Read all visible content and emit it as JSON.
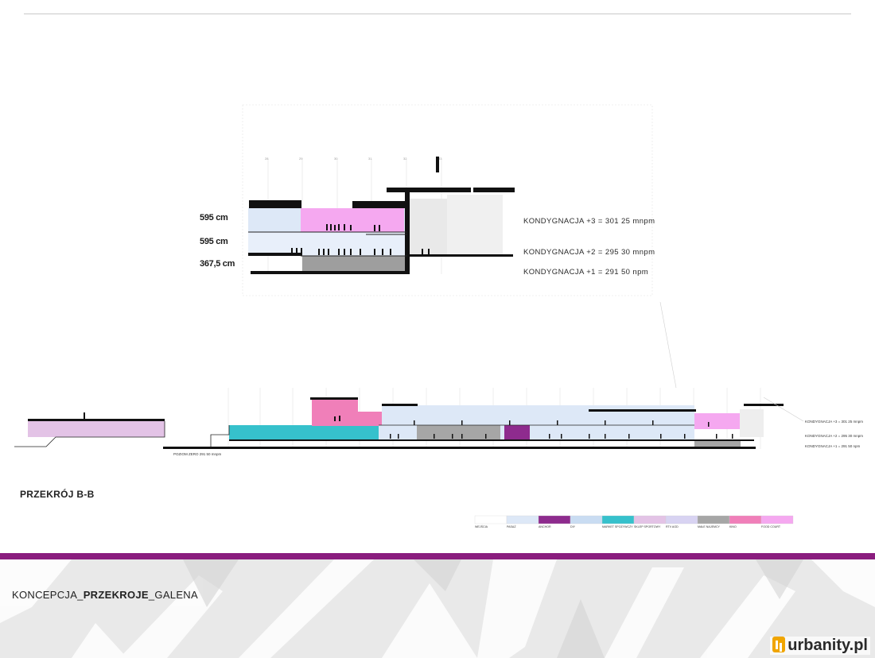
{
  "upper_section": {
    "heights": [
      "595 cm",
      "595 cm",
      "367,5 cm"
    ],
    "levels": [
      "KONDYGNACJA +3 = 301 25 mnpm",
      "KONDYGNACJA +2 = 295 30 mnpm",
      "KONDYGNACJA +1 = 291 50 npm"
    ]
  },
  "lower_section": {
    "ground_label": "POZIOM ZERO 291 50 mnpm",
    "levels": [
      "KONDYGNACJA +3 = 301 25 mnpm",
      "KONDYGNACJA +2 = 295 30 mnpm",
      "KONDYGNACJA +1 = 291 50 npm"
    ]
  },
  "section_title": "PRZEKRÓJ B-B",
  "legend": [
    {
      "label": "WEJŚCIA",
      "color": "#ffffff"
    },
    {
      "label": "PASAŻ",
      "color": "#dde8f7"
    },
    {
      "label": "ANCHOR",
      "color": "#8e2b8e"
    },
    {
      "label": "DIY",
      "color": "#c9dcf2"
    },
    {
      "label": "MARKET SPOŻYWCZY",
      "color": "#36c1cc"
    },
    {
      "label": "SKLEP SPORTOWY",
      "color": "#e3c3e6"
    },
    {
      "label": "RTV AGD",
      "color": "#d8d3f2"
    },
    {
      "label": "MAŁE NAJEMCY",
      "color": "#a6a6a6"
    },
    {
      "label": "KINO",
      "color": "#f07fb9"
    },
    {
      "label": "FOOD COURT",
      "color": "#f5a8f0"
    }
  ],
  "footer": {
    "part1": "KONCEPCJA_",
    "part2": "PRZEKROJE",
    "part3": "_GALENA"
  },
  "brand": "urbanity.pl"
}
